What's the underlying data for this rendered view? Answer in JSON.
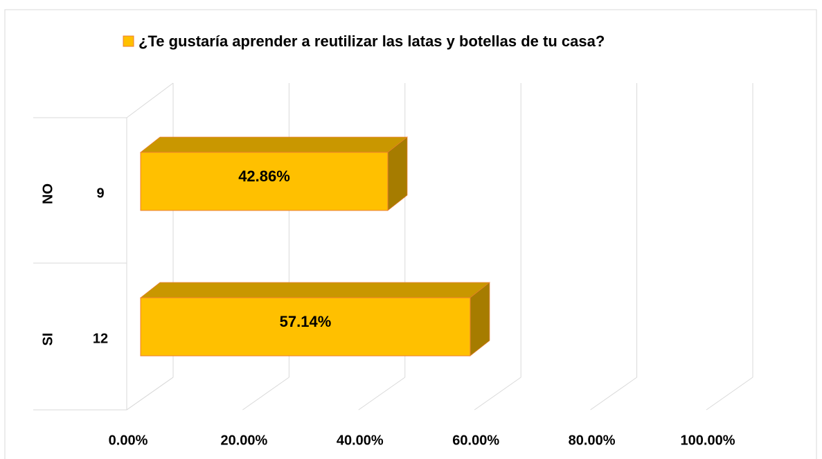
{
  "chart_data": {
    "type": "bar3d_horizontal",
    "groups": [
      "NO",
      "SI"
    ],
    "categories": [
      "9",
      "12"
    ],
    "series": [
      {
        "name": "¿Te gustaría aprender a reutilizar las latas y botellas de tu casa?",
        "color": "#FFC000",
        "values": [
          42.86,
          57.14
        ],
        "value_labels": [
          "42.86%",
          "57.14%"
        ]
      }
    ],
    "xlim": [
      0,
      100
    ],
    "xticks": [
      {
        "value": 0,
        "label": "0.00%"
      },
      {
        "value": 20,
        "label": "20.00%"
      },
      {
        "value": 40,
        "label": "40.00%"
      },
      {
        "value": 60,
        "label": "60.00%"
      },
      {
        "value": 80,
        "label": "80.00%"
      },
      {
        "value": 100,
        "label": "100.00%"
      }
    ],
    "grid": true,
    "legend": "top"
  }
}
